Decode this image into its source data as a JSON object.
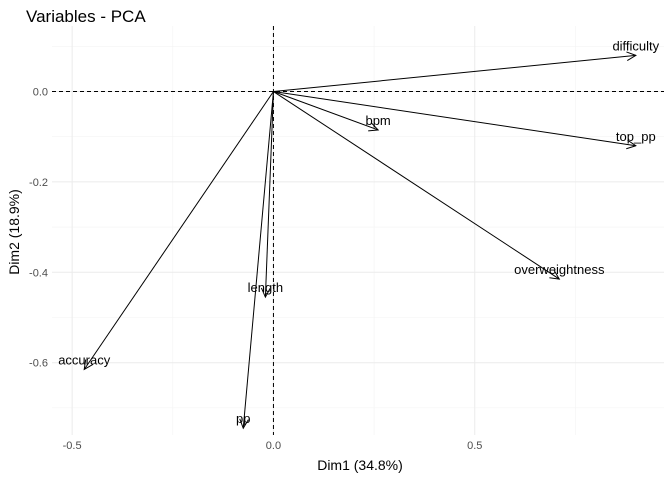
{
  "chart_data": {
    "type": "scatter",
    "subtype": "pca-variable-correlation-arrows",
    "title": "Variables - PCA",
    "xlabel": "Dim1 (34.8%)",
    "ylabel": "Dim2 (18.9%)",
    "xlim": [
      -0.55,
      0.97
    ],
    "ylim": [
      -0.76,
      0.145
    ],
    "x_ticks": [
      -0.5,
      0.0,
      0.5
    ],
    "x_tick_labels": [
      "-0.5",
      "0.0",
      "0.5"
    ],
    "y_ticks": [
      0.0,
      -0.2,
      -0.4,
      -0.6
    ],
    "y_tick_labels": [
      "0.0",
      "-0.2",
      "-0.4",
      "-0.6"
    ],
    "grid": true,
    "reference_lines": {
      "x": 0,
      "y": 0,
      "style": "dashed"
    },
    "variables": [
      {
        "name": "difficulty",
        "x": 0.9,
        "y": 0.08
      },
      {
        "name": "top_pp",
        "x": 0.9,
        "y": -0.12
      },
      {
        "name": "bpm",
        "x": 0.26,
        "y": -0.085
      },
      {
        "name": "overweightness",
        "x": 0.71,
        "y": -0.415
      },
      {
        "name": "length",
        "x": -0.02,
        "y": -0.455
      },
      {
        "name": "accuracy",
        "x": -0.47,
        "y": -0.615
      },
      {
        "name": "pp",
        "x": -0.075,
        "y": -0.745
      }
    ]
  }
}
